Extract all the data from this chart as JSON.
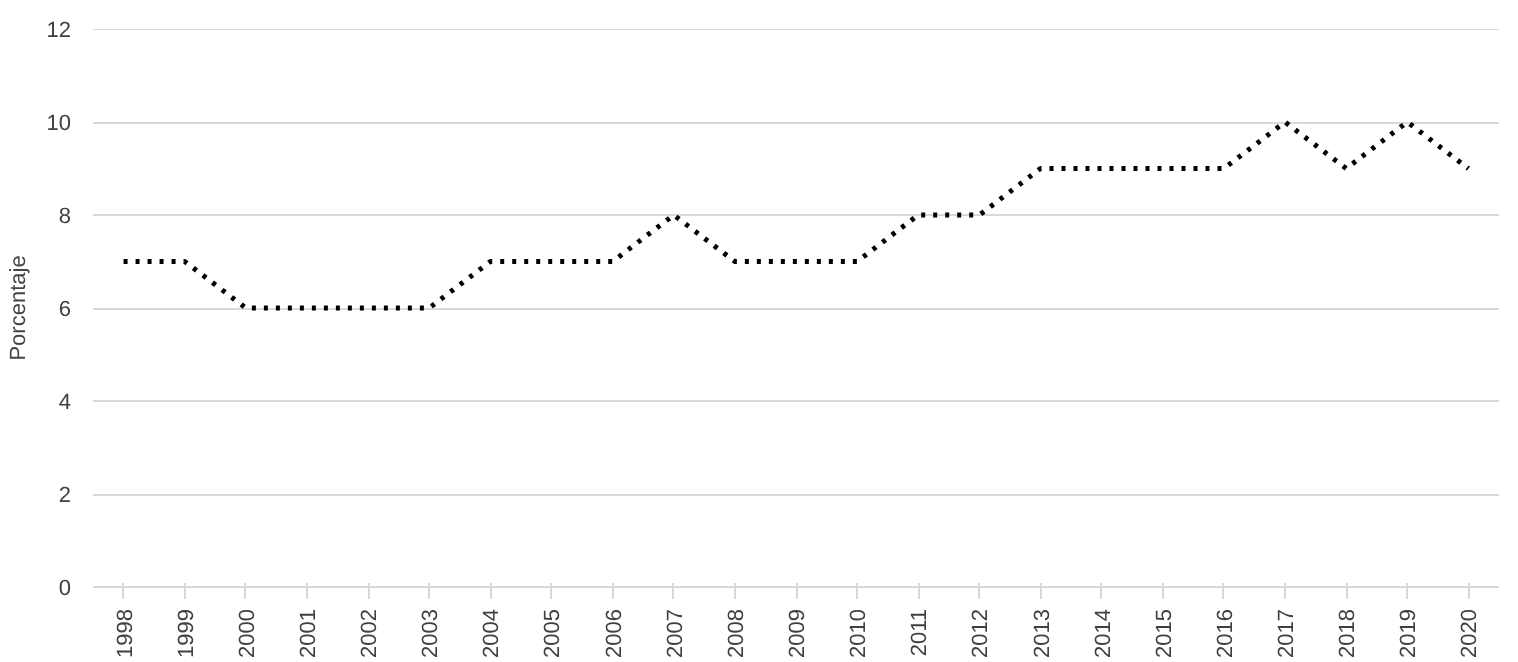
{
  "chart_data": {
    "type": "line",
    "ylabel": "Porcentaje",
    "categories": [
      "1998",
      "1999",
      "2000",
      "2001",
      "2002",
      "2003",
      "2004",
      "2005",
      "2006",
      "2007",
      "2008",
      "2009",
      "2010",
      "2011",
      "2012",
      "2013",
      "2014",
      "2015",
      "2016",
      "2017",
      "2018",
      "2019",
      "2020"
    ],
    "series": [
      {
        "color": "#000000",
        "values": [
          7,
          7,
          6,
          6,
          6,
          6,
          7,
          7,
          7,
          8,
          7,
          7,
          7,
          8,
          8,
          9,
          9,
          9,
          9,
          10,
          9,
          10,
          9
        ]
      }
    ],
    "ylim": [
      0,
      12
    ],
    "yticks": [
      0,
      2,
      4,
      6,
      8,
      10,
      12
    ],
    "grid": "y",
    "marker": "none",
    "line_style": "dotted"
  }
}
